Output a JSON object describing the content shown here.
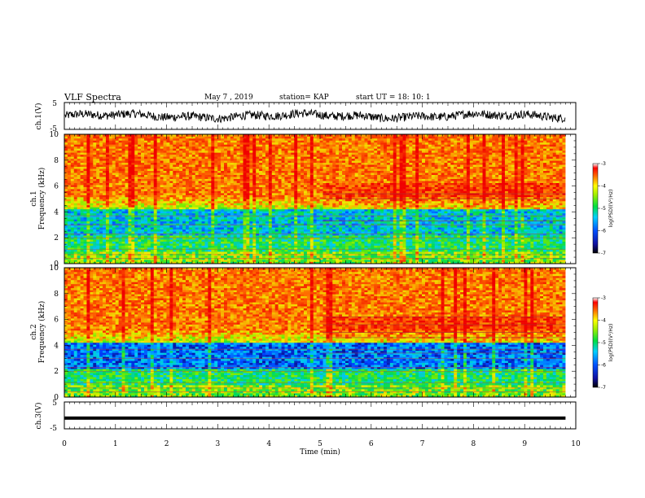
{
  "header": {
    "title": "VLF Spectra",
    "date": "May 7  , 2019",
    "station": "station= KAP",
    "start": "start  UT  =   18: 10: 1"
  },
  "chart_data": [
    {
      "type": "line",
      "panel": "ch1-waveform",
      "ylabel": "ch.1(V)",
      "ylim": [
        -5,
        5
      ],
      "yticks": [
        "5",
        "-5"
      ],
      "xlim": [
        0,
        10
      ]
    },
    {
      "type": "heatmap",
      "panel": "ch1-spectrogram",
      "ylabel_top": "ch.1",
      "ylabel": "Frequency  (kHz)",
      "xlim": [
        0,
        10
      ],
      "ylim": [
        0,
        10
      ],
      "yticks": [
        "0",
        "2",
        "4",
        "6",
        "8",
        "10"
      ],
      "data_end_min": 9.8,
      "colorbar": {
        "label": "log(PSD)(V²/Hz)",
        "range": [
          -7,
          -3
        ],
        "ticks": [
          "-3",
          "-4",
          "-5",
          "-6",
          "-7"
        ]
      }
    },
    {
      "type": "heatmap",
      "panel": "ch2-spectrogram",
      "ylabel_top": "ch.2",
      "ylabel": "Frequency  (kHz)",
      "xlim": [
        0,
        10
      ],
      "ylim": [
        0,
        10
      ],
      "yticks": [
        "0",
        "2",
        "4",
        "6",
        "8",
        "10"
      ],
      "data_end_min": 9.8,
      "colorbar": {
        "label": "log(PSD)(V²/Hz)",
        "range": [
          -7,
          -3
        ],
        "ticks": [
          "-3",
          "-4",
          "-5",
          "-6",
          "-7"
        ]
      }
    },
    {
      "type": "line",
      "panel": "ch3-waveform",
      "ylabel": "ch.3(V)",
      "ylim": [
        -5,
        5
      ],
      "yticks": [
        "5",
        "-5"
      ],
      "xlim": [
        0,
        10
      ],
      "constant_value": -1
    }
  ],
  "xaxis": {
    "label": "Time  (min)",
    "ticks": [
      "0",
      "1",
      "2",
      "3",
      "4",
      "5",
      "6",
      "7",
      "8",
      "9",
      "10"
    ]
  },
  "colors": {
    "axes": "#000000",
    "background": "#ffffff"
  }
}
